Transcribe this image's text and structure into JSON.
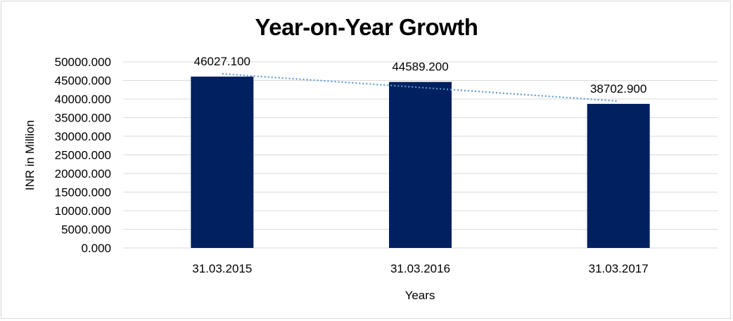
{
  "chart_data": {
    "type": "bar",
    "title": "Year-on-Year Growth",
    "xlabel": "Years",
    "ylabel": "INR in Million",
    "categories": [
      "31.03.2015",
      "31.03.2016",
      "31.03.2017"
    ],
    "values": [
      46027.1,
      44589.2,
      38702.9
    ],
    "data_labels": [
      "46027.100",
      "44589.200",
      "38702.900"
    ],
    "ylim": [
      0,
      50000
    ],
    "yticks": [
      "0.000",
      "5000.000",
      "10000.000",
      "15000.000",
      "20000.000",
      "25000.000",
      "30000.000",
      "35000.000",
      "40000.000",
      "45000.000",
      "50000.000"
    ],
    "grid": true,
    "legend": "none",
    "trendline": {
      "type": "linear",
      "style": "dotted"
    },
    "colors": {
      "bar": "#002060",
      "trendline": "#5b9bd5",
      "grid": "#d9d9d9"
    }
  }
}
